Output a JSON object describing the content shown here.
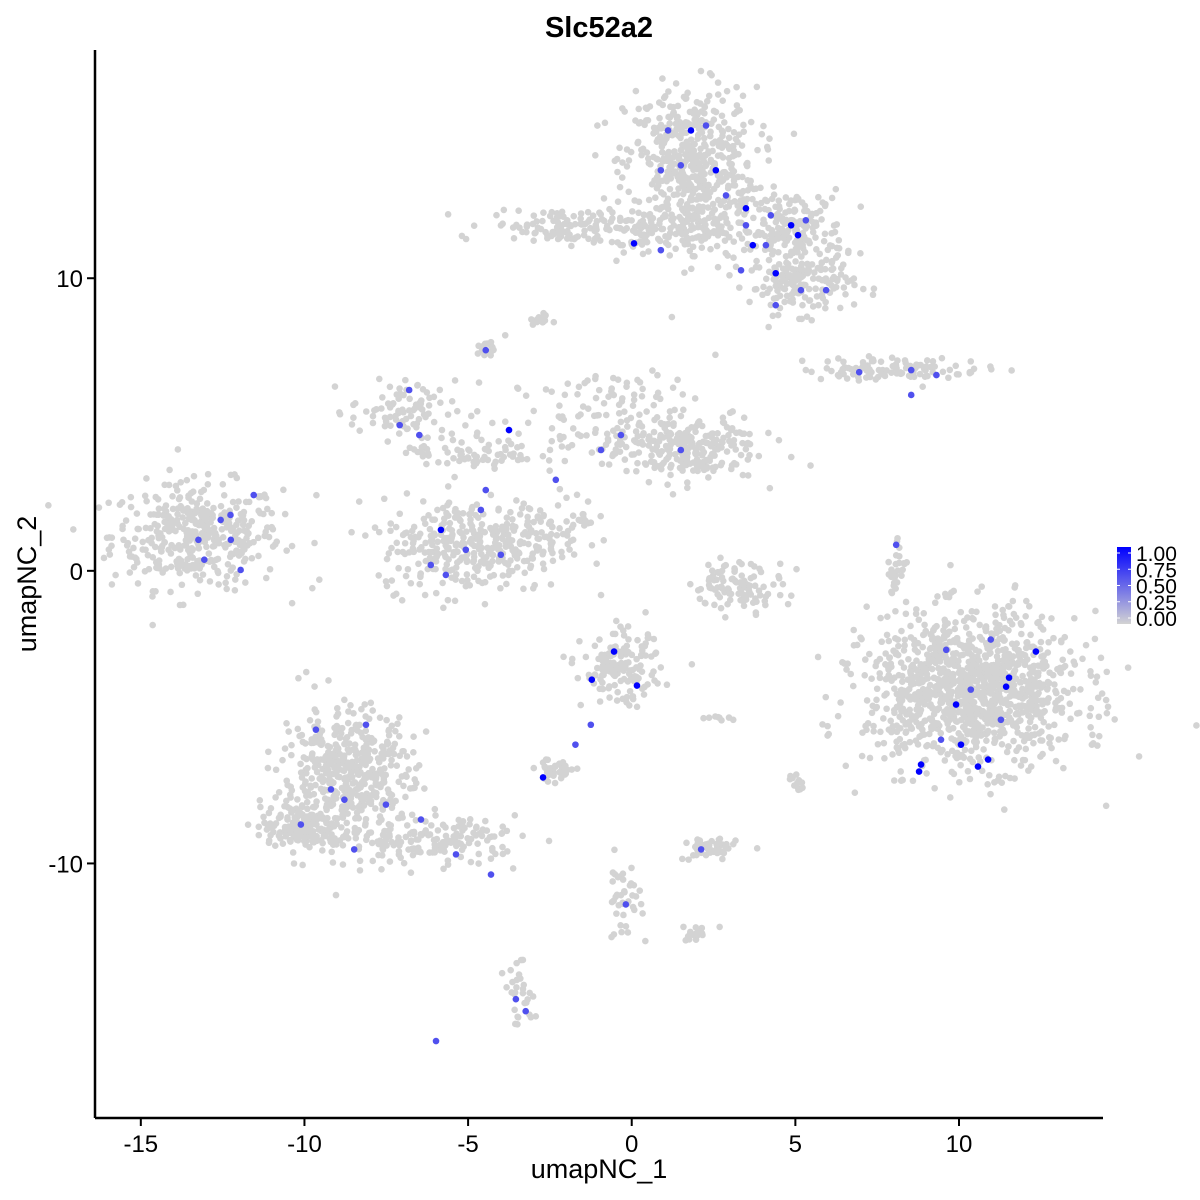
{
  "chart_data": {
    "type": "scatter",
    "title": "Slc52a2",
    "xlabel": "umapNC_1",
    "ylabel": "umapNC_2",
    "xlim": [
      -16.4,
      14.4
    ],
    "ylim": [
      -18.7,
      17.8
    ],
    "xticks": [
      -15,
      -10,
      -5,
      0,
      5,
      10
    ],
    "yticks": [
      -10,
      0,
      10
    ],
    "grid": false,
    "colors": {
      "low": "#d3d3d3",
      "high": "#0000ff"
    },
    "legend": {
      "position": "right",
      "ticks": [
        "1.00",
        "0.75",
        "0.50",
        "0.25",
        "0.00"
      ],
      "range": [
        0,
        1
      ]
    },
    "clusters": [
      {
        "center": [
          -13.3,
          1.2
        ],
        "sd": [
          1.3,
          0.9
        ],
        "n": 400
      },
      {
        "center": [
          1.8,
          13.9
        ],
        "sd": [
          1.0,
          1.3
        ],
        "n": 500
      },
      {
        "center": [
          4.9,
          11.6
        ],
        "sd": [
          0.8,
          0.7
        ],
        "n": 200
      },
      {
        "center": [
          5.2,
          9.8
        ],
        "sd": [
          0.8,
          0.5
        ],
        "n": 150
      },
      {
        "center": [
          2.1,
          11.6
        ],
        "sd": [
          0.8,
          0.6
        ],
        "n": 100
      },
      {
        "center": [
          0.3,
          11.5
        ],
        "sd": [
          0.6,
          0.3
        ],
        "n": 40
      },
      {
        "center": [
          -2.0,
          11.8
        ],
        "sd": [
          1.2,
          0.3
        ],
        "n": 120
      },
      {
        "center": [
          -2.8,
          8.6
        ],
        "sd": [
          0.15,
          0.1
        ],
        "n": 15
      },
      {
        "center": [
          -4.5,
          7.5
        ],
        "sd": [
          0.15,
          0.15
        ],
        "n": 15
      },
      {
        "center": [
          -7.0,
          5.5
        ],
        "sd": [
          0.8,
          0.5
        ],
        "n": 80
      },
      {
        "center": [
          -4.9,
          0.9
        ],
        "sd": [
          1.4,
          0.8
        ],
        "n": 350
      },
      {
        "center": [
          -0.3,
          5.2
        ],
        "sd": [
          1.8,
          0.8
        ],
        "n": 150
      },
      {
        "center": [
          1.5,
          4.1
        ],
        "sd": [
          1.2,
          0.5
        ],
        "n": 200
      },
      {
        "center": [
          -4.9,
          4.1
        ],
        "sd": [
          1.0,
          0.4
        ],
        "n": 80
      },
      {
        "center": [
          -2.2,
          1.7
        ],
        "sd": [
          0.8,
          0.4
        ],
        "n": 50
      },
      {
        "center": [
          8.0,
          6.9
        ],
        "sd": [
          1.4,
          0.2
        ],
        "n": 100
      },
      {
        "center": [
          10.4,
          -4.1
        ],
        "sd": [
          1.6,
          1.3
        ],
        "n": 1200
      },
      {
        "center": [
          3.3,
          -0.5
        ],
        "sd": [
          0.7,
          0.4
        ],
        "n": 100
      },
      {
        "center": [
          8.1,
          0.0
        ],
        "sd": [
          0.15,
          0.8
        ],
        "n": 30
      },
      {
        "center": [
          -8.7,
          -7.1
        ],
        "sd": [
          1.0,
          1.2
        ],
        "n": 500
      },
      {
        "center": [
          -10.1,
          -8.7
        ],
        "sd": [
          0.6,
          0.4
        ],
        "n": 150
      },
      {
        "center": [
          -5.8,
          -9.2
        ],
        "sd": [
          1.2,
          0.4
        ],
        "n": 150
      },
      {
        "center": [
          -0.3,
          -3.4
        ],
        "sd": [
          0.6,
          0.6
        ],
        "n": 150
      },
      {
        "center": [
          -2.3,
          -6.8
        ],
        "sd": [
          0.3,
          0.2
        ],
        "n": 40
      },
      {
        "center": [
          2.4,
          -9.5
        ],
        "sd": [
          0.4,
          0.2
        ],
        "n": 50
      },
      {
        "center": [
          -0.3,
          -11.2
        ],
        "sd": [
          0.3,
          0.7
        ],
        "n": 40
      },
      {
        "center": [
          -3.4,
          -14.5
        ],
        "sd": [
          0.25,
          0.5
        ],
        "n": 30
      },
      {
        "center": [
          2.1,
          -12.4
        ],
        "sd": [
          0.4,
          0.15
        ],
        "n": 20
      },
      {
        "center": [
          5.0,
          -7.3
        ],
        "sd": [
          0.1,
          0.2
        ],
        "n": 12
      },
      {
        "center": [
          2.7,
          -5.0
        ],
        "sd": [
          0.3,
          0.05
        ],
        "n": 8
      }
    ],
    "expressing_points": [
      [
        1.81,
        15.05,
        1
      ],
      [
        2.57,
        13.69,
        1
      ],
      [
        3.49,
        12.39,
        1
      ],
      [
        0.07,
        11.19,
        1
      ],
      [
        3.7,
        11.13,
        1
      ],
      [
        4.4,
        10.17,
        1
      ],
      [
        5.08,
        11.47,
        1
      ],
      [
        4.87,
        11.81,
        1
      ],
      [
        -5.83,
        1.4,
        1
      ],
      [
        -3.75,
        4.81,
        1
      ],
      [
        -0.54,
        -2.76,
        1
      ],
      [
        0.16,
        -3.92,
        1
      ],
      [
        -1.22,
        -3.72,
        1
      ],
      [
        -2.71,
        -7.06,
        1
      ],
      [
        8.84,
        -6.62,
        1
      ],
      [
        9.91,
        -4.57,
        1
      ],
      [
        10.06,
        -5.94,
        1
      ],
      [
        10.58,
        -6.69,
        1
      ],
      [
        10.89,
        -6.45,
        1
      ],
      [
        11.44,
        -3.96,
        1
      ],
      [
        11.53,
        -3.65,
        1
      ],
      [
        12.35,
        -2.76,
        1
      ],
      [
        8.78,
        -6.86,
        1
      ],
      [
        1.11,
        15.05,
        0.5
      ],
      [
        2.27,
        15.22,
        0.5
      ],
      [
        1.5,
        13.86,
        0.5
      ],
      [
        0.89,
        13.69,
        0.5
      ],
      [
        2.88,
        12.83,
        0.5
      ],
      [
        4.25,
        12.15,
        0.5
      ],
      [
        5.32,
        11.98,
        0.5
      ],
      [
        3.49,
        11.81,
        0.5
      ],
      [
        4.1,
        11.13,
        0.5
      ],
      [
        0.89,
        10.96,
        0.5
      ],
      [
        3.34,
        10.27,
        0.5
      ],
      [
        5.17,
        9.59,
        0.5
      ],
      [
        4.4,
        9.08,
        0.5
      ],
      [
        5.94,
        9.59,
        0.5
      ],
      [
        8.54,
        6.86,
        0.5
      ],
      [
        9.31,
        6.69,
        0.5
      ],
      [
        8.54,
        6.01,
        0.5
      ],
      [
        6.95,
        6.79,
        0.5
      ],
      [
        -4.46,
        7.54,
        0.5
      ],
      [
        -6.8,
        6.18,
        0.5
      ],
      [
        -6.49,
        4.64,
        0.5
      ],
      [
        -7.09,
        4.98,
        0.5
      ],
      [
        -0.94,
        4.13,
        0.5
      ],
      [
        1.5,
        4.13,
        0.5
      ],
      [
        -0.33,
        4.64,
        0.5
      ],
      [
        -4.46,
        2.76,
        0.5
      ],
      [
        -4.61,
        2.08,
        0.5
      ],
      [
        -4.0,
        0.55,
        0.5
      ],
      [
        -5.07,
        0.72,
        0.5
      ],
      [
        -5.68,
        -0.14,
        0.5
      ],
      [
        -6.14,
        0.2,
        0.5
      ],
      [
        -13.24,
        1.06,
        0.5
      ],
      [
        -12.56,
        1.74,
        0.5
      ],
      [
        -12.26,
        1.91,
        0.5
      ],
      [
        -11.55,
        2.59,
        0.5
      ],
      [
        -12.25,
        1.06,
        0.5
      ],
      [
        -13.06,
        0.38,
        0.5
      ],
      [
        -11.95,
        0.03,
        0.5
      ],
      [
        8.08,
        0.89,
        0.5
      ],
      [
        -1.25,
        -5.26,
        0.5
      ],
      [
        -1.72,
        -5.94,
        0.5
      ],
      [
        9.61,
        -2.7,
        0.5
      ],
      [
        10.36,
        -4.06,
        0.5
      ],
      [
        10.97,
        -2.35,
        0.5
      ],
      [
        11.28,
        -5.09,
        0.5
      ],
      [
        9.45,
        -5.77,
        0.5
      ],
      [
        -9.65,
        -5.43,
        0.5
      ],
      [
        -8.78,
        -7.82,
        0.5
      ],
      [
        -8.48,
        -9.52,
        0.5
      ],
      [
        -9.19,
        -7.47,
        0.5
      ],
      [
        -8.12,
        -5.26,
        0.5
      ],
      [
        -10.11,
        -8.67,
        0.5
      ],
      [
        -7.51,
        -7.99,
        0.5
      ],
      [
        -6.44,
        -8.5,
        0.5
      ],
      [
        -5.37,
        -9.69,
        0.5
      ],
      [
        -4.3,
        -10.38,
        0.5
      ],
      [
        2.12,
        -9.52,
        0.5
      ],
      [
        -0.18,
        -11.4,
        0.5
      ],
      [
        -3.54,
        -14.64,
        0.5
      ],
      [
        -3.24,
        -15.05,
        0.5
      ],
      [
        -5.98,
        -16.07,
        0.5
      ],
      [
        -2.32,
        3.11,
        0.5
      ]
    ]
  }
}
